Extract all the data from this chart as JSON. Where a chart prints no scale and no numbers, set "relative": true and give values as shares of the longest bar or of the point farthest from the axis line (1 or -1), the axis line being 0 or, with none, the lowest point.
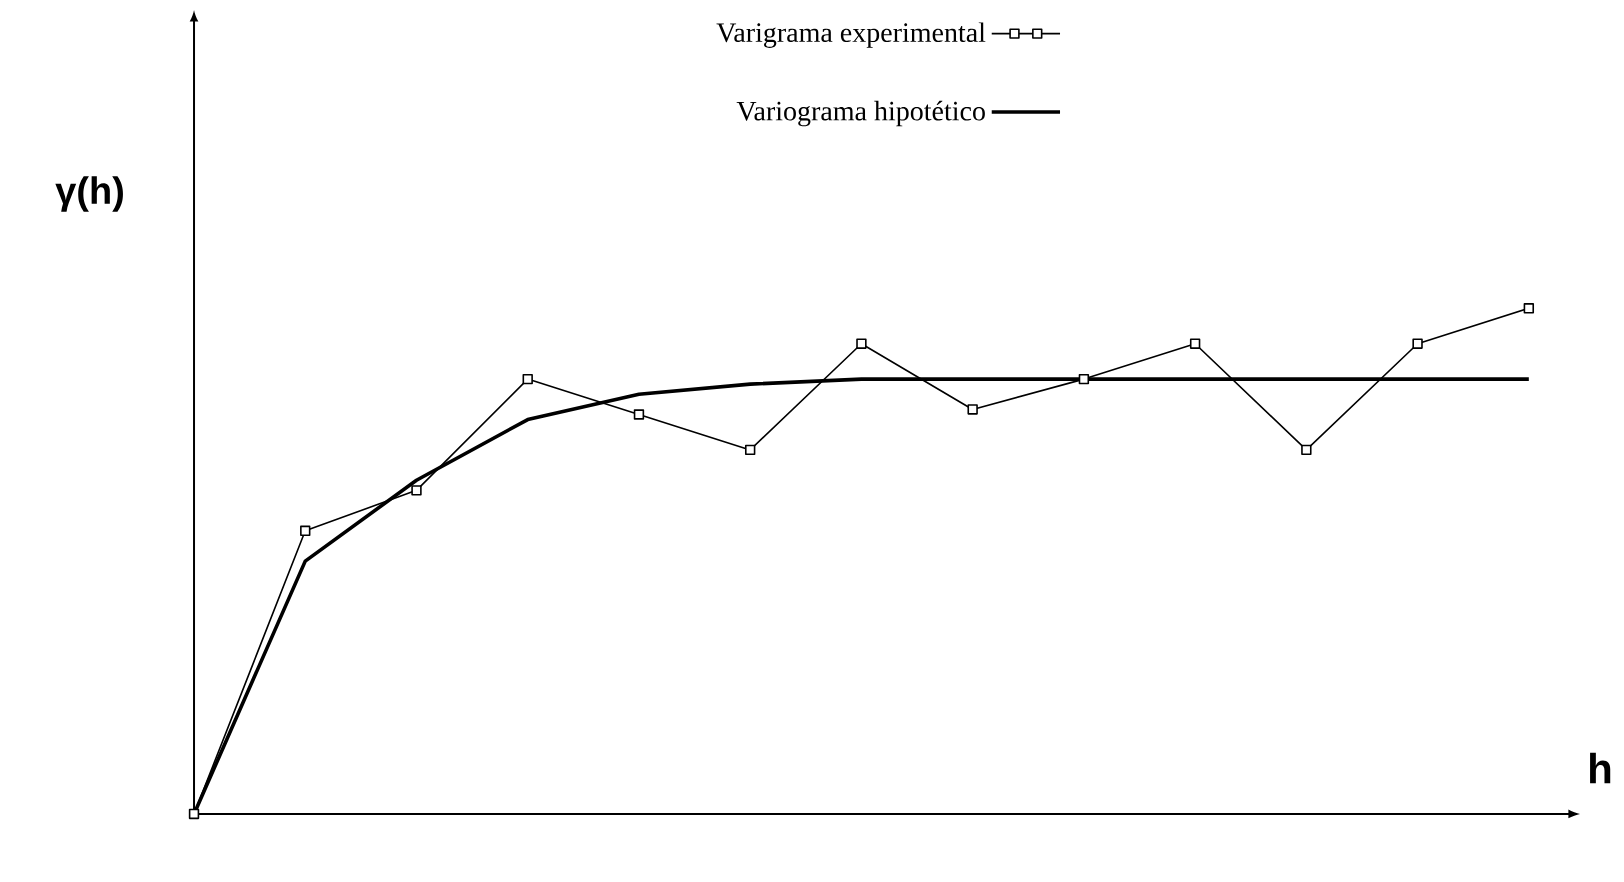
{
  "chart_data": {
    "type": "line",
    "relative": true,
    "xlabel": "h",
    "ylabel": "γ(h)",
    "tick_labels": false,
    "legend": "top",
    "categories": [
      null,
      null,
      null,
      null,
      null,
      null,
      null,
      null,
      null,
      null,
      null,
      null,
      null
    ],
    "series": [
      {
        "name": "Varigrama experimental",
        "color": "#000000",
        "marker": "square",
        "line_style": "solid",
        "values": [
          0,
          0.56,
          0.64,
          0.86,
          0.79,
          0.72,
          0.93,
          0.8,
          0.86,
          0.93,
          0.72,
          0.93,
          1
        ]
      },
      {
        "name": "Variograma hipotético",
        "color": "#000000",
        "marker": "none",
        "line_style": "solid",
        "values": [
          0,
          0.5,
          0.66,
          0.78,
          0.83,
          0.85,
          0.86,
          0.86,
          0.86,
          0.86,
          0.86,
          0.86,
          0.86
        ]
      }
    ]
  }
}
